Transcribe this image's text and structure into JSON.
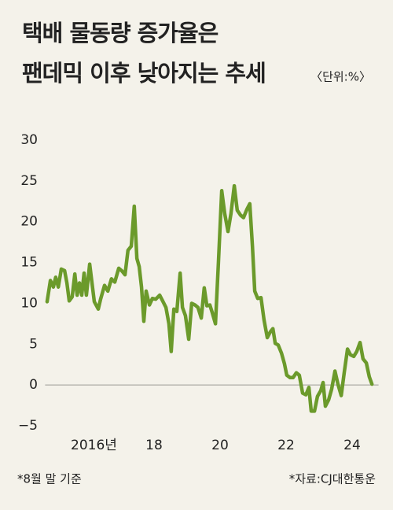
{
  "chart_data": {
    "type": "line",
    "title": [
      "택배 물동량 증가율은",
      "팬데믹 이후 낮아지는 추세"
    ],
    "unit": "〈단위:%〉",
    "footnote": "*8월 말 기준",
    "source": "*자료:CJ대한통운",
    "color": "#6b9a2b",
    "xlim": [
      2014.7,
      2024.8
    ],
    "xticks": [
      {
        "value": 2016,
        "label": "2016년"
      },
      {
        "value": 2018,
        "label": "18"
      },
      {
        "value": 2020,
        "label": "20"
      },
      {
        "value": 2022,
        "label": "22"
      },
      {
        "value": 2024,
        "label": "24"
      }
    ],
    "ylim": [
      -5,
      30
    ],
    "yticks": [
      {
        "value": -5,
        "label": "−5"
      },
      0,
      5,
      10,
      15,
      20,
      25,
      30
    ],
    "zero_line": true,
    "x": [
      2014.76,
      2014.86,
      2014.95,
      2015.02,
      2015.1,
      2015.19,
      2015.29,
      2015.36,
      2015.43,
      2015.52,
      2015.6,
      2015.67,
      2015.74,
      2015.81,
      2015.88,
      2015.95,
      2016.05,
      2016.12,
      2016.19,
      2016.31,
      2016.38,
      2016.5,
      2016.6,
      2016.71,
      2016.81,
      2016.93,
      2017.02,
      2017.12,
      2017.21,
      2017.31,
      2017.4,
      2017.48,
      2017.55,
      2017.62,
      2017.69,
      2017.76,
      2017.86,
      2017.95,
      2018.05,
      2018.17,
      2018.26,
      2018.36,
      2018.45,
      2018.52,
      2018.6,
      2018.69,
      2018.79,
      2018.86,
      2018.95,
      2019.05,
      2019.14,
      2019.24,
      2019.33,
      2019.43,
      2019.52,
      2019.6,
      2019.69,
      2019.76,
      2019.86,
      2019.95,
      2020.05,
      2020.14,
      2020.24,
      2020.33,
      2020.43,
      2020.52,
      2020.62,
      2020.71,
      2020.81,
      2020.9,
      2020.98,
      2021.05,
      2021.14,
      2021.24,
      2021.33,
      2021.43,
      2021.52,
      2021.6,
      2021.67,
      2021.76,
      2021.86,
      2021.95,
      2022.02,
      2022.12,
      2022.21,
      2022.31,
      2022.4,
      2022.5,
      2022.6,
      2022.69,
      2022.76,
      2022.86,
      2022.95,
      2023.05,
      2023.12,
      2023.19,
      2023.29,
      2023.38,
      2023.48,
      2023.57,
      2023.67,
      2023.76,
      2023.86,
      2023.95,
      2024.05,
      2024.14,
      2024.24,
      2024.33,
      2024.43,
      2024.52,
      2024.6
    ],
    "values": [
      10.2,
      12.8,
      12,
      13.2,
      12,
      14.2,
      14,
      12.5,
      10.3,
      10.8,
      13.6,
      11,
      12.5,
      11,
      13.7,
      11,
      14.8,
      12.5,
      10.2,
      9.3,
      10.5,
      12.2,
      11.5,
      13,
      12.6,
      14.3,
      14,
      13.5,
      16.5,
      17,
      21.9,
      15.5,
      14.5,
      12,
      7.8,
      11.5,
      9.8,
      10.6,
      10.5,
      11,
      10.3,
      9.5,
      7.5,
      4.1,
      9.3,
      9,
      13.7,
      9.5,
      8.5,
      5.6,
      10,
      9.8,
      9.5,
      8.2,
      11.9,
      9.7,
      9.8,
      8.9,
      7.5,
      15,
      23.8,
      21,
      18.8,
      21,
      24.4,
      21.4,
      20.8,
      20.5,
      21.5,
      22.2,
      17,
      11.5,
      10.6,
      10.7,
      8,
      5.8,
      6.5,
      6.9,
      5.1,
      4.9,
      3.9,
      2.6,
      1.2,
      0.9,
      0.9,
      1.5,
      1.2,
      -1,
      -1.2,
      -0.3,
      -3.2,
      -3.2,
      -1.4,
      -0.7,
      0.3,
      -2.6,
      -1.8,
      -0.5,
      1.7,
      0.1,
      -1.3,
      1.5,
      4.4,
      3.7,
      3.5,
      4.1,
      5.2,
      3.2,
      2.7,
      1,
      0.1
    ]
  }
}
